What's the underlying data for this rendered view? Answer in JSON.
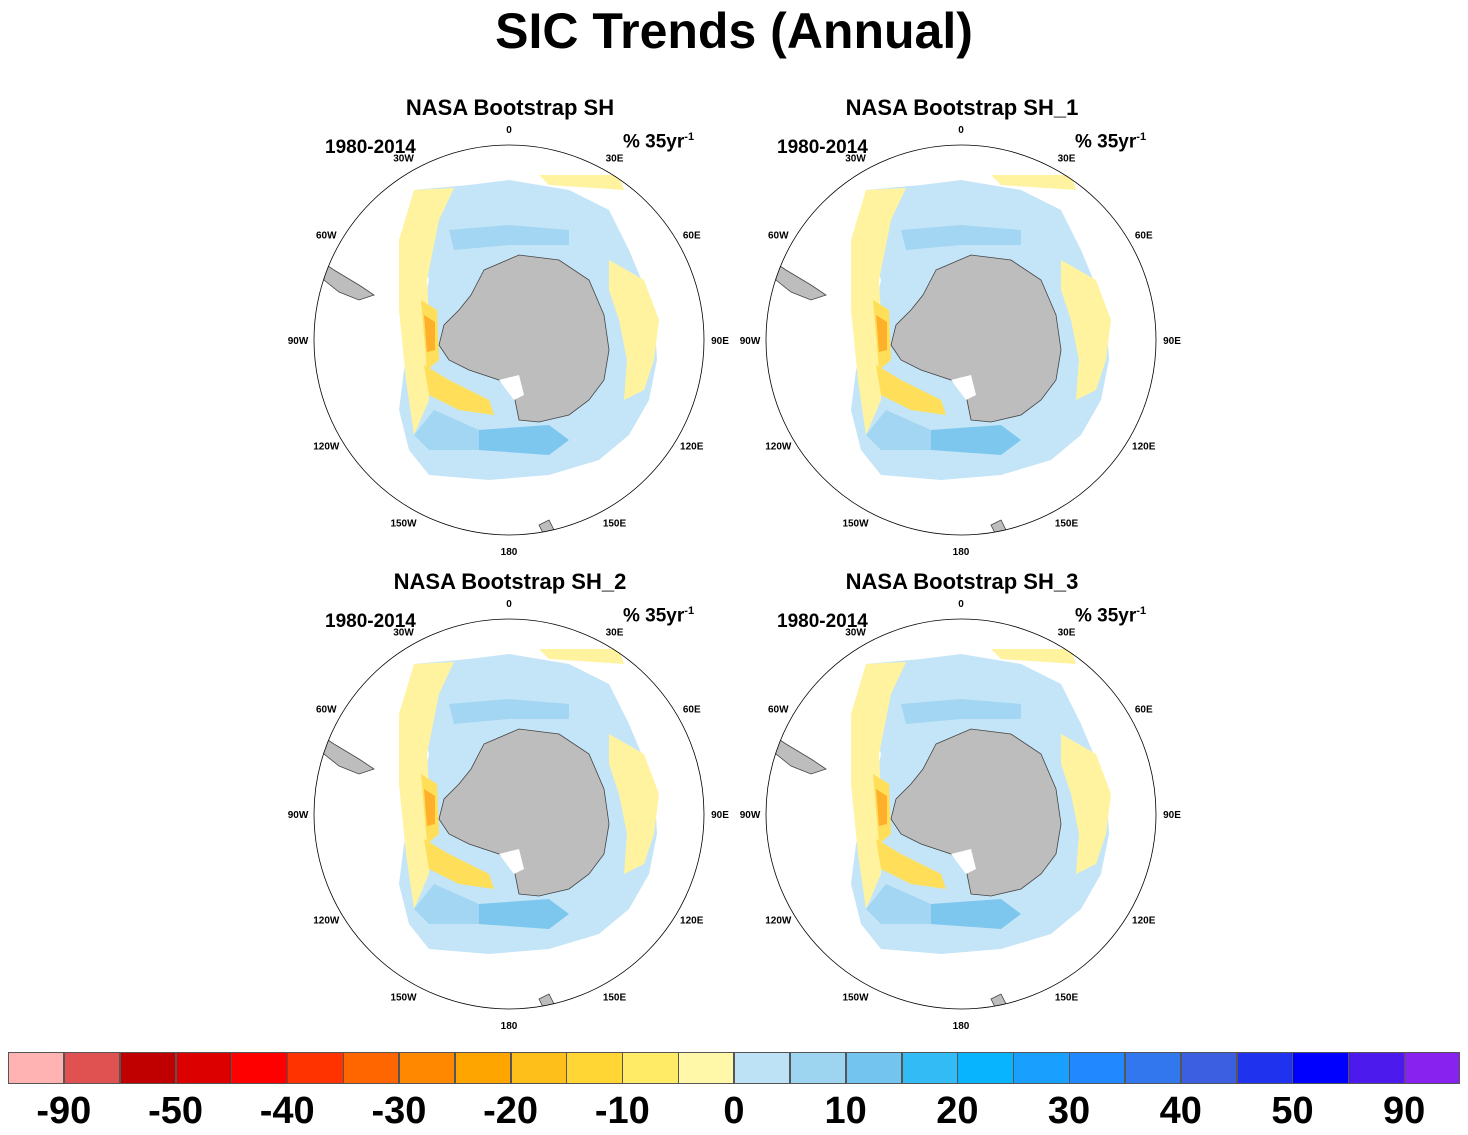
{
  "title": "SIC Trends (Annual)",
  "panels": [
    {
      "title": "NASA Bootstrap SH",
      "period": "1980-2014",
      "units_main": "% 35yr",
      "units_sup": "-1"
    },
    {
      "title": "NASA Bootstrap SH_1",
      "period": "1980-2014",
      "units_main": "% 35yr",
      "units_sup": "-1"
    },
    {
      "title": "NASA Bootstrap SH_2",
      "period": "1980-2014",
      "units_main": "% 35yr",
      "units_sup": "-1"
    },
    {
      "title": "NASA Bootstrap SH_3",
      "period": "1980-2014",
      "units_main": "% 35yr",
      "units_sup": "-1"
    }
  ],
  "longitude_labels": [
    "0",
    "30E",
    "60E",
    "90E",
    "120E",
    "150E",
    "180",
    "150W",
    "120W",
    "90W",
    "60W",
    "30W"
  ],
  "colorbar": {
    "colors": [
      "#ffb3b3",
      "#e05252",
      "#c00000",
      "#dd0000",
      "#ff0000",
      "#ff3300",
      "#ff6600",
      "#ff8800",
      "#ffa500",
      "#ffbf1a",
      "#ffd633",
      "#ffeb66",
      "#fff8a8",
      "#bde2f5",
      "#9dd4f0",
      "#73c5f0",
      "#33bbf5",
      "#09b4ff",
      "#19a0ff",
      "#2288ff",
      "#3377ee",
      "#3b5fe0",
      "#1f33ee",
      "#0000ff",
      "#4d1aee",
      "#8822ee"
    ],
    "labels": [
      "-90",
      "-50",
      "-40",
      "-30",
      "-20",
      "-10",
      "0",
      "10",
      "20",
      "30",
      "40",
      "50",
      "90"
    ]
  },
  "map_colors": {
    "land": "#bdbdbd",
    "coast": "#444444",
    "ice_shelf": "#ffffff",
    "decline_weak": "#fff3a0",
    "decline_mid": "#ffde5a",
    "decline_strong": "#ffb02a",
    "decline_max": "#ff6a10",
    "gain_weak": "#c4e5f7",
    "gain_mid": "#a3d6f2",
    "gain_strong": "#7dc7ef",
    "gain_max": "#3ab4f2"
  }
}
